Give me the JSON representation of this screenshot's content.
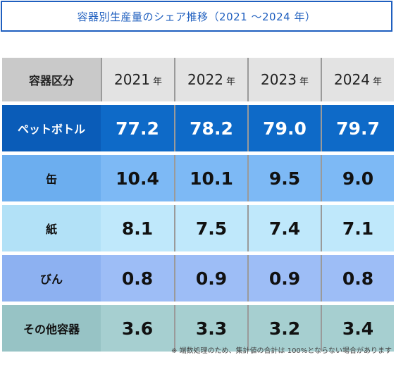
{
  "title": "容器別生産量のシェア推移（2021 〜2024 年）",
  "table": {
    "header_label": "容器区分",
    "year_unit": "年",
    "years": [
      "2021",
      "2022",
      "2023",
      "2024"
    ],
    "rows": [
      {
        "label": "ペットボトル",
        "values": [
          "77.2",
          "78.2",
          "79.0",
          "79.7"
        ]
      },
      {
        "label": "缶",
        "values": [
          "10.4",
          "10.1",
          "9.5",
          "9.0"
        ]
      },
      {
        "label": "紙",
        "values": [
          "8.1",
          "7.5",
          "7.4",
          "7.1"
        ]
      },
      {
        "label": "びん",
        "values": [
          "0.8",
          "0.9",
          "0.9",
          "0.8"
        ]
      },
      {
        "label": "その他容器",
        "values": [
          "3.6",
          "3.3",
          "3.2",
          "3.4"
        ]
      }
    ]
  },
  "footnote": "※ 端数処理のため、集計値の合計は 100%とならない場合があります",
  "colors": {
    "title_border": "#1f5fbf",
    "pet_row": "#0e6ac8",
    "can_row": "#7db9f5",
    "paper_row": "#bfe8fb",
    "bin_row": "#9dbdf6",
    "other_row": "#a6cfd0"
  }
}
